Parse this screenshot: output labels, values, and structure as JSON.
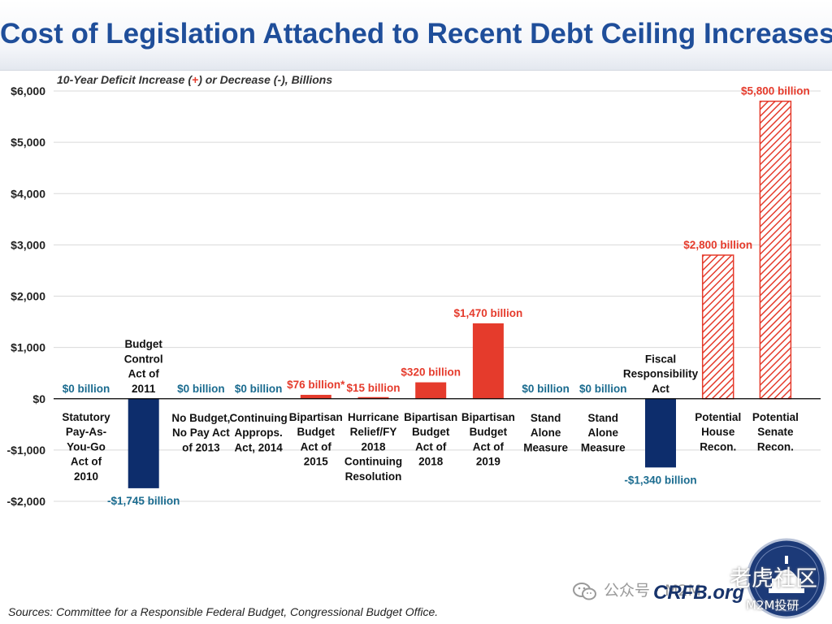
{
  "title": "Cost of Legislation Attached to Recent Debt Ceiling Increases",
  "subtitle": {
    "before": "10-Year Deficit Increase (",
    "plus": "+",
    "after": ") or Decrease (-), Billions"
  },
  "footer": "Sources: Committee for a Responsible Federal Budget, Congressional Budget Office.",
  "brand": "CRFB.org",
  "watermark": {
    "wechat_text": "公众号 · M2M",
    "community_text": "老虎社区",
    "channel_text": "M2M投研"
  },
  "colors": {
    "increase": "#e53b2c",
    "decrease": "#0d2d6c",
    "zero_label": "#1a6b8f",
    "title": "#1f4e9a"
  },
  "chart_data": {
    "type": "bar",
    "title": "Cost of Legislation Attached to Recent Debt Ceiling Increases",
    "ylabel": "10-Year Deficit Increase (+) or Decrease (-), Billions",
    "ylim": [
      -2000,
      6000
    ],
    "yticks": [
      -2000,
      -1000,
      0,
      1000,
      2000,
      3000,
      4000,
      5000,
      6000
    ],
    "ytick_labels": [
      "-$2,000",
      "-$1,000",
      "$0",
      "$1,000",
      "$2,000",
      "$3,000",
      "$4,000",
      "$5,000",
      "$6,000"
    ],
    "grid": true,
    "bars": [
      {
        "label": [
          "Statutory",
          "Pay-As-",
          "You-Go",
          "Act of",
          "2010"
        ],
        "value": 0,
        "value_label": "$0 billion",
        "style": "zero"
      },
      {
        "label": [
          "Budget",
          "Control",
          "Act of",
          "2011"
        ],
        "value": -1745,
        "value_label": "-$1,745 billion",
        "style": "decrease"
      },
      {
        "label": [
          "No Budget,",
          "No Pay Act",
          "of 2013"
        ],
        "value": 0,
        "value_label": "$0 billion",
        "style": "zero"
      },
      {
        "label": [
          "Continuing",
          "Approps.",
          "Act, 2014"
        ],
        "value": 0,
        "value_label": "$0 billion",
        "style": "zero"
      },
      {
        "label": [
          "Bipartisan",
          "Budget",
          "Act of",
          "2015"
        ],
        "value": 76,
        "value_label": "$76 billion*",
        "style": "increase"
      },
      {
        "label": [
          "Hurricane",
          "Relief/FY",
          "2018",
          "Continuing",
          "Resolution"
        ],
        "value": 15,
        "value_label": "$15 billion",
        "style": "increase"
      },
      {
        "label": [
          "Bipartisan",
          "Budget",
          "Act of",
          "2018"
        ],
        "value": 320,
        "value_label": "$320 billion",
        "style": "increase"
      },
      {
        "label": [
          "Bipartisan",
          "Budget",
          "Act of",
          "2019"
        ],
        "value": 1470,
        "value_label": "$1,470 billion",
        "style": "increase"
      },
      {
        "label": [
          "Stand",
          "Alone",
          "Measure"
        ],
        "value": 0,
        "value_label": "$0 billion",
        "style": "zero"
      },
      {
        "label": [
          "Stand",
          "Alone",
          "Measure"
        ],
        "value": 0,
        "value_label": "$0 billion",
        "style": "zero"
      },
      {
        "label": [
          "Fiscal",
          "Responsibility",
          "Act"
        ],
        "value": -1340,
        "value_label": "-$1,340 billion",
        "style": "decrease"
      },
      {
        "label": [
          "Potential",
          "House",
          "Recon."
        ],
        "value": 2800,
        "value_label": "$2,800 billion",
        "style": "potential"
      },
      {
        "label": [
          "Potential",
          "Senate",
          "Recon."
        ],
        "value": 5800,
        "value_label": "$5,800 billion",
        "style": "potential"
      }
    ]
  }
}
